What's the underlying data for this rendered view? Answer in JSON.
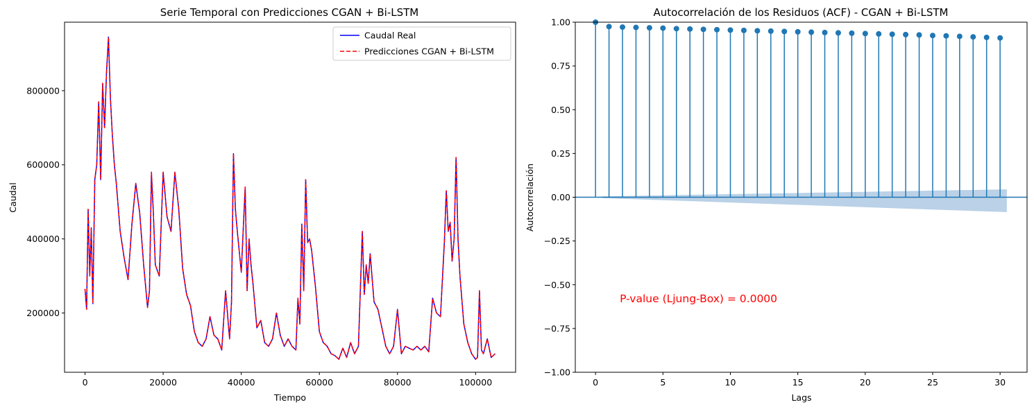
{
  "colors": {
    "real": "#0000ff",
    "pred": "#ff0000",
    "acf": "#1f77b4",
    "band": "#aec9e3",
    "annotation": "#ff0000"
  },
  "chart_data": [
    {
      "type": "line",
      "title": "Serie Temporal con Predicciones CGAN + Bi-LSTM",
      "xlabel": "Tiempo",
      "ylabel": "Caudal",
      "xlim": [
        -5250,
        110250
      ],
      "ylim": [
        40000,
        985000
      ],
      "xticks": [
        0,
        20000,
        40000,
        60000,
        80000,
        100000
      ],
      "yticks": [
        200000,
        400000,
        600000,
        800000
      ],
      "legend_position": "upper right",
      "series": [
        {
          "name": "Caudal Real",
          "style": "solid"
        },
        {
          "name": "Predicciones CGAN + Bi-LSTM",
          "style": "dashed"
        }
      ],
      "x": [
        0,
        400,
        800,
        1200,
        1600,
        2000,
        2500,
        3000,
        3500,
        4000,
        4500,
        5000,
        5500,
        6000,
        6500,
        7000,
        7500,
        8000,
        9000,
        10000,
        11000,
        12000,
        13000,
        14000,
        15000,
        16000,
        16500,
        17000,
        17500,
        18000,
        19000,
        20000,
        21000,
        22000,
        23000,
        24000,
        25000,
        26000,
        27000,
        28000,
        29000,
        30000,
        31000,
        32000,
        33000,
        34000,
        35000,
        36000,
        37000,
        37500,
        38000,
        38500,
        39000,
        40000,
        41000,
        41500,
        42000,
        42500,
        43000,
        44000,
        45000,
        46000,
        47000,
        48000,
        49000,
        50000,
        51000,
        52000,
        53000,
        54000,
        54500,
        55000,
        55500,
        56000,
        56500,
        57000,
        57500,
        58000,
        59000,
        60000,
        61000,
        62000,
        63000,
        64000,
        65000,
        66000,
        67000,
        68000,
        69000,
        70000,
        71000,
        71500,
        72000,
        72500,
        73000,
        74000,
        75000,
        76000,
        77000,
        78000,
        79000,
        80000,
        81000,
        82000,
        83000,
        84000,
        85000,
        86000,
        87000,
        88000,
        89000,
        90000,
        91000,
        92000,
        92500,
        93000,
        93500,
        94000,
        94500,
        95000,
        95500,
        96000,
        97000,
        98000,
        99000,
        100000,
        100500,
        101000,
        101500,
        102000,
        103000,
        104000,
        105000
      ],
      "y": [
        265000,
        210000,
        480000,
        300000,
        430000,
        225000,
        560000,
        600000,
        770000,
        560000,
        820000,
        700000,
        850000,
        945000,
        780000,
        680000,
        600000,
        550000,
        420000,
        350000,
        290000,
        440000,
        550000,
        470000,
        330000,
        215000,
        260000,
        580000,
        470000,
        330000,
        300000,
        580000,
        460000,
        420000,
        580000,
        480000,
        320000,
        250000,
        220000,
        150000,
        120000,
        110000,
        130000,
        190000,
        140000,
        130000,
        100000,
        260000,
        130000,
        230000,
        630000,
        480000,
        420000,
        310000,
        540000,
        260000,
        400000,
        330000,
        280000,
        160000,
        180000,
        120000,
        110000,
        130000,
        200000,
        140000,
        110000,
        130000,
        110000,
        100000,
        240000,
        170000,
        440000,
        260000,
        560000,
        390000,
        400000,
        370000,
        270000,
        150000,
        120000,
        110000,
        90000,
        85000,
        75000,
        105000,
        80000,
        120000,
        90000,
        110000,
        420000,
        250000,
        330000,
        280000,
        360000,
        230000,
        210000,
        160000,
        110000,
        90000,
        110000,
        210000,
        90000,
        110000,
        105000,
        100000,
        110000,
        100000,
        110000,
        95000,
        240000,
        200000,
        190000,
        390000,
        530000,
        420000,
        445000,
        340000,
        400000,
        620000,
        400000,
        300000,
        170000,
        120000,
        90000,
        75000,
        80000,
        260000,
        100000,
        90000,
        130000,
        80000,
        90000
      ]
    },
    {
      "type": "scatter",
      "subtype": "acf_stem",
      "title": "Autocorrelación de los Residuos (ACF) - CGAN + Bi-LSTM",
      "xlabel": "Lags",
      "ylabel": "Autocorrelación",
      "xlim": [
        -1.5,
        32
      ],
      "ylim": [
        -1.0,
        1.0
      ],
      "xticks": [
        0,
        5,
        10,
        15,
        20,
        25,
        30
      ],
      "yticks": [
        -1.0,
        -0.75,
        -0.5,
        -0.25,
        0.0,
        0.25,
        0.5,
        0.75,
        1.0
      ],
      "ytick_labels": [
        "−1.00",
        "−0.75",
        "−0.50",
        "−0.25",
        "0.00",
        "0.25",
        "0.50",
        "0.75",
        "1.00"
      ],
      "xtick_labels": [
        "0",
        "5",
        "10",
        "15",
        "20",
        "25",
        "30"
      ],
      "lags": [
        0,
        1,
        2,
        3,
        4,
        5,
        6,
        7,
        8,
        9,
        10,
        11,
        12,
        13,
        14,
        15,
        16,
        17,
        18,
        19,
        20,
        21,
        22,
        23,
        24,
        25,
        26,
        27,
        28,
        29,
        30
      ],
      "values": [
        1.0,
        0.975,
        0.972,
        0.97,
        0.968,
        0.966,
        0.963,
        0.961,
        0.959,
        0.957,
        0.955,
        0.953,
        0.951,
        0.949,
        0.947,
        0.945,
        0.943,
        0.941,
        0.939,
        0.937,
        0.935,
        0.933,
        0.931,
        0.929,
        0.927,
        0.924,
        0.922,
        0.919,
        0.916,
        0.913,
        0.91
      ],
      "confidence_band": {
        "lag_start": 0.5,
        "lag_end": 30.5,
        "upper_start": 0.005,
        "upper_end": 0.045,
        "lower_start": -0.005,
        "lower_end": -0.085
      },
      "annotation": {
        "text": "P-value (Ljung-Box) = 0.0000",
        "x": 1.8,
        "y": -0.58
      }
    }
  ]
}
